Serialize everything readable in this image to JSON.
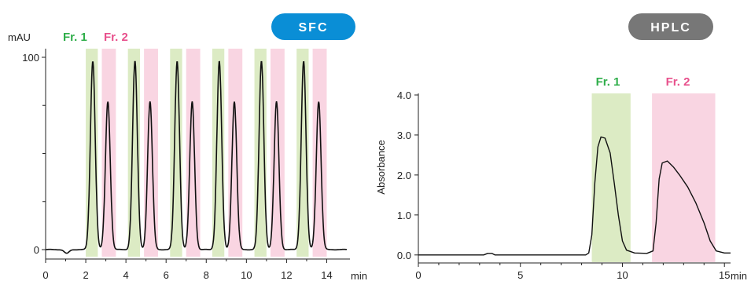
{
  "colors": {
    "fr1_label": "#2fae4a",
    "fr2_label": "#e8508c",
    "fr1_band": "#dcebc4",
    "fr2_band": "#f9d5e2",
    "sfc_badge": "#0a8ed6",
    "hplc_badge": "#777777",
    "trace": "#111111"
  },
  "chart_data": [
    {
      "type": "line",
      "badge": "SFC",
      "y_unit": "mAU",
      "x_unit": "min",
      "xlim": [
        0,
        15
      ],
      "ylim": [
        0,
        100
      ],
      "x_ticks": [
        0,
        2,
        4,
        6,
        8,
        10,
        12,
        14
      ],
      "y_ticks": [
        0,
        100
      ],
      "y_minor_ticks": [
        25,
        50,
        75
      ],
      "fraction_labels": [
        {
          "text": "Fr. 1",
          "color_key": "fr1_label"
        },
        {
          "text": "Fr. 2",
          "color_key": "fr2_label"
        }
      ],
      "fraction_windows": [
        {
          "fraction": 1,
          "start": 2.0,
          "end": 2.6
        },
        {
          "fraction": 2,
          "start": 2.8,
          "end": 3.5
        },
        {
          "fraction": 1,
          "start": 4.1,
          "end": 4.7
        },
        {
          "fraction": 2,
          "start": 4.9,
          "end": 5.6
        },
        {
          "fraction": 1,
          "start": 6.2,
          "end": 6.8
        },
        {
          "fraction": 2,
          "start": 7.0,
          "end": 7.7
        },
        {
          "fraction": 1,
          "start": 8.3,
          "end": 8.9
        },
        {
          "fraction": 2,
          "start": 9.1,
          "end": 9.8
        },
        {
          "fraction": 1,
          "start": 10.4,
          "end": 11.0
        },
        {
          "fraction": 2,
          "start": 11.2,
          "end": 11.9
        },
        {
          "fraction": 1,
          "start": 12.5,
          "end": 13.1
        },
        {
          "fraction": 2,
          "start": 13.3,
          "end": 14.0
        }
      ],
      "peaks": [
        {
          "x": 2.35,
          "y": 98
        },
        {
          "x": 3.1,
          "y": 77
        },
        {
          "x": 4.45,
          "y": 98
        },
        {
          "x": 5.2,
          "y": 77
        },
        {
          "x": 6.55,
          "y": 98
        },
        {
          "x": 7.3,
          "y": 77
        },
        {
          "x": 8.65,
          "y": 98
        },
        {
          "x": 9.4,
          "y": 77
        },
        {
          "x": 10.75,
          "y": 98
        },
        {
          "x": 11.5,
          "y": 77
        },
        {
          "x": 12.85,
          "y": 98
        },
        {
          "x": 13.6,
          "y": 77
        }
      ],
      "baseline_dip": {
        "x": 1.05,
        "y": -2
      }
    },
    {
      "type": "line",
      "badge": "HPLC",
      "ylabel": "Absorbance",
      "x_unit": "min",
      "xlim": [
        0,
        15.3
      ],
      "ylim": [
        -0.2,
        4.0
      ],
      "x_ticks": [
        0,
        5,
        10,
        15
      ],
      "y_ticks": [
        0.0,
        1.0,
        2.0,
        3.0,
        4.0
      ],
      "y_tick_labels": [
        "0.0",
        "1.0",
        "2.0",
        "3.0",
        "4.0"
      ],
      "fraction_labels": [
        {
          "text": "Fr. 1",
          "color_key": "fr1_label"
        },
        {
          "text": "Fr. 2",
          "color_key": "fr2_label"
        }
      ],
      "fraction_windows": [
        {
          "fraction": 1,
          "start": 8.5,
          "end": 10.4
        },
        {
          "fraction": 2,
          "start": 11.45,
          "end": 14.55
        }
      ],
      "trace_points": [
        [
          0.0,
          0.0
        ],
        [
          3.2,
          0.0
        ],
        [
          3.4,
          0.04
        ],
        [
          3.6,
          0.04
        ],
        [
          3.75,
          0.0
        ],
        [
          8.2,
          0.0
        ],
        [
          8.35,
          0.05
        ],
        [
          8.5,
          0.5
        ],
        [
          8.65,
          1.8
        ],
        [
          8.8,
          2.7
        ],
        [
          8.95,
          2.95
        ],
        [
          9.15,
          2.92
        ],
        [
          9.4,
          2.55
        ],
        [
          9.6,
          1.8
        ],
        [
          9.8,
          1.0
        ],
        [
          10.0,
          0.35
        ],
        [
          10.2,
          0.12
        ],
        [
          10.6,
          0.05
        ],
        [
          11.2,
          0.04
        ],
        [
          11.5,
          0.1
        ],
        [
          11.65,
          0.8
        ],
        [
          11.8,
          1.9
        ],
        [
          11.95,
          2.3
        ],
        [
          12.2,
          2.35
        ],
        [
          12.5,
          2.2
        ],
        [
          12.8,
          2.0
        ],
        [
          13.2,
          1.7
        ],
        [
          13.6,
          1.3
        ],
        [
          14.0,
          0.8
        ],
        [
          14.3,
          0.35
        ],
        [
          14.6,
          0.1
        ],
        [
          15.0,
          0.05
        ],
        [
          15.3,
          0.05
        ]
      ]
    }
  ]
}
